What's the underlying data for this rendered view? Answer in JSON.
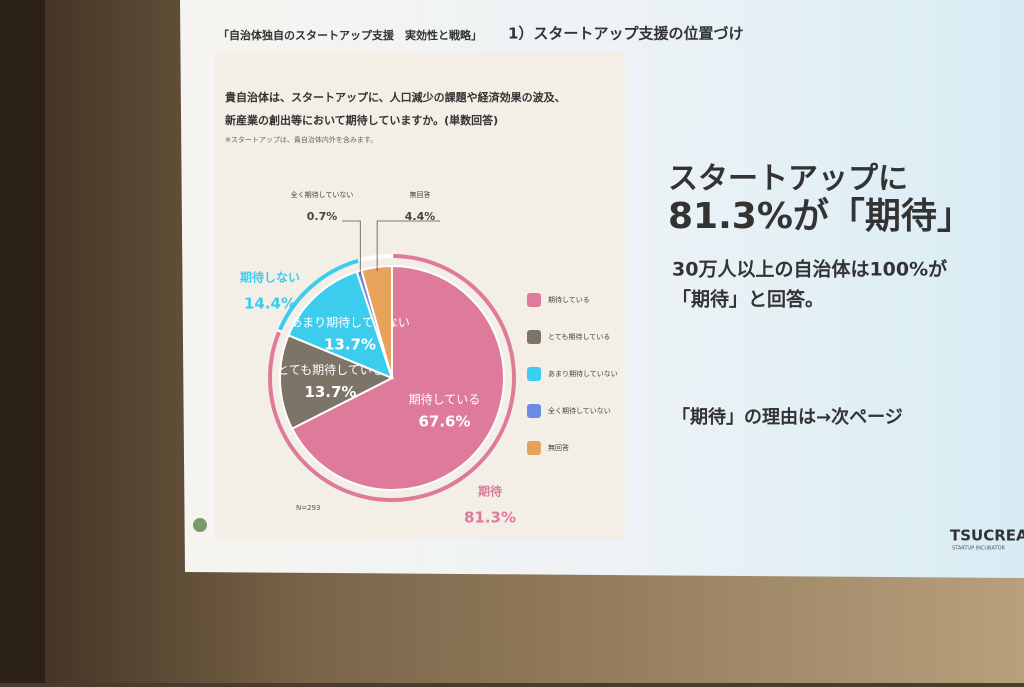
{
  "slide": {
    "header": "「自治体独自のスタートアップ支援　実効性と戦略」",
    "section": "1）スタートアップ支援の位置づけ",
    "question_line1": "貴自治体は、スタートアップに、人口減少の課題や経済効果の波及、",
    "question_line2": "新産業の創出等において期待していますか。(単数回答)",
    "note": "※スタートアップは、貴自治体内外を含みます。",
    "sample": "N=293",
    "headline1": "スタートアップに",
    "headline2": "81.3%が「期待」",
    "sub1": "30万人以上の自治体は100%が",
    "sub2": "「期待」と回答。",
    "next": "「期待」の理由は→次ページ",
    "logo": "TSUCREA",
    "logo_sub": "STARTUP INCUBATOR"
  },
  "chart_data": {
    "type": "pie",
    "categories": [
      "期待している",
      "とても期待している",
      "あまり期待していない",
      "全く期待していない",
      "無回答"
    ],
    "values": [
      67.6,
      13.7,
      13.7,
      0.7,
      4.4
    ],
    "value_labels": [
      "67.6%",
      "13.7%",
      "13.7%",
      "0.7%",
      "4.4%"
    ],
    "colors": [
      "#de7b9b",
      "#7c7466",
      "#3ccdee",
      "#6a8be6",
      "#e7a25c"
    ],
    "annotations": [
      {
        "label": "期待",
        "value": 81.3,
        "value_label": "81.3%",
        "color": "#de7b9b"
      },
      {
        "label": "期待しない",
        "value": 14.4,
        "value_label": "14.4%",
        "color": "#3ccdee"
      }
    ]
  }
}
